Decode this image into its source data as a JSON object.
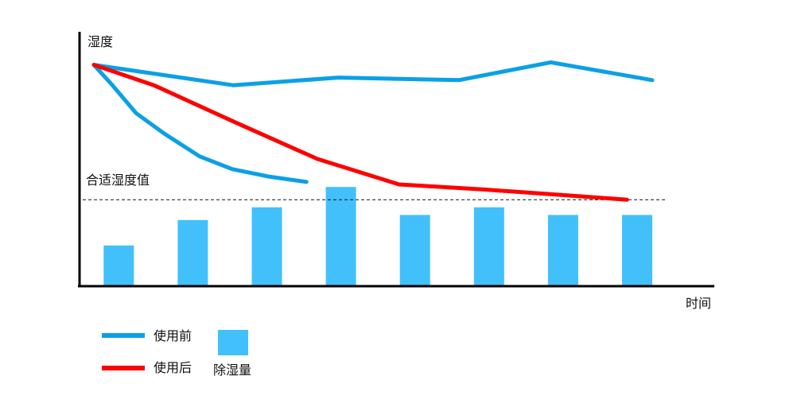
{
  "chart_data": {
    "type": "line",
    "title": "",
    "ylabel": "湿度",
    "xlabel": "时间",
    "grid": false,
    "ylim": [
      0,
      100
    ],
    "reference_line": {
      "label": "合适湿度值",
      "value": 34,
      "style": "dashed"
    },
    "series": [
      {
        "name": "使用前",
        "type": "line",
        "color": "#0aa0e6",
        "x": [
          0,
          0.25,
          0.57,
          0.95,
          1.43,
          1.87,
          2.38,
          2.87
        ],
        "values": [
          87,
          79,
          68,
          60,
          51,
          46,
          43,
          41
        ]
      },
      {
        "name": "使用前",
        "type": "line",
        "color": "#0aa0e6",
        "x": [
          0,
          1.88,
          3.3,
          4.93,
          6.17,
          7.54
        ],
        "values": [
          87,
          79,
          82,
          81,
          88,
          81
        ]
      },
      {
        "name": "使用后",
        "type": "line",
        "color": "#ff0000",
        "x": [
          0,
          0.81,
          1.94,
          3.02,
          4.12,
          5.27,
          6.24,
          7.2
        ],
        "values": [
          87,
          79,
          64,
          50,
          40,
          38,
          36,
          34
        ]
      },
      {
        "name": "除湿量",
        "type": "bar",
        "color": "#42c0fb",
        "x": [
          0.1,
          1.1,
          2.1,
          3.1,
          4.1,
          5.1,
          6.1,
          7.1
        ],
        "values": [
          16,
          26,
          31,
          39,
          28,
          31,
          28,
          28
        ]
      }
    ]
  },
  "legend": {
    "items": [
      {
        "label": "使用前",
        "kind": "line",
        "color": "#0aa0e6"
      },
      {
        "label": "使用后",
        "kind": "line",
        "color": "#ff0000"
      },
      {
        "label": "除湿量",
        "kind": "box",
        "color": "#42c0fb"
      }
    ]
  }
}
